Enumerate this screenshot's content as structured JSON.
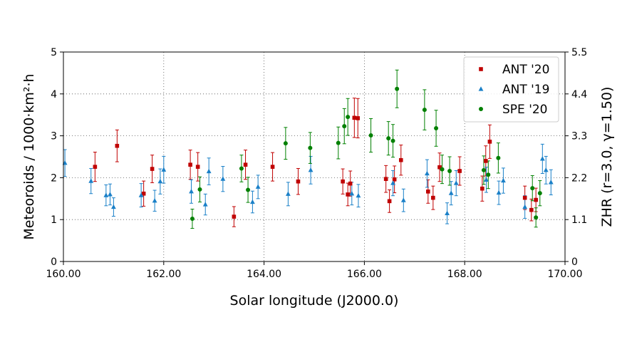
{
  "chart_data": {
    "type": "scatter",
    "xlabel": "Solar longitude (J2000.0)",
    "ylabel_left": "Meteoroids / 1000·km²·h",
    "ylabel_right": "ZHR (r=3.0, γ=1.50)",
    "xlim": [
      160,
      170
    ],
    "ylim_left": [
      0,
      5
    ],
    "ylim_right": [
      0,
      5.5
    ],
    "x_ticks": [
      "160.00",
      "162.00",
      "164.00",
      "166.00",
      "168.00",
      "170.00"
    ],
    "y_ticks_left": [
      "0",
      "1",
      "2",
      "3",
      "4",
      "5"
    ],
    "y_ticks_right": [
      "0",
      "1.1",
      "2.2",
      "3.3",
      "4.4",
      "5.5"
    ],
    "grid": true,
    "legend_position": "top-right",
    "series": [
      {
        "name": "ANT '20",
        "marker": "square",
        "color": "#c00000",
        "points": [
          [
            160.63,
            2.26,
            0.35
          ],
          [
            161.07,
            2.76,
            0.38
          ],
          [
            161.6,
            1.62,
            0.3
          ],
          [
            161.77,
            2.21,
            0.33
          ],
          [
            162.53,
            2.31,
            0.35
          ],
          [
            162.68,
            2.26,
            0.34
          ],
          [
            163.4,
            1.07,
            0.24
          ],
          [
            163.63,
            2.31,
            0.35
          ],
          [
            164.17,
            2.26,
            0.34
          ],
          [
            164.68,
            1.91,
            0.31
          ],
          [
            165.57,
            1.91,
            0.3
          ],
          [
            165.67,
            1.6,
            0.27
          ],
          [
            165.72,
            1.86,
            0.3
          ],
          [
            165.8,
            3.43,
            0.47
          ],
          [
            165.87,
            3.42,
            0.47
          ],
          [
            166.43,
            1.97,
            0.32
          ],
          [
            166.5,
            1.44,
            0.27
          ],
          [
            166.6,
            1.96,
            0.32
          ],
          [
            166.73,
            2.42,
            0.36
          ],
          [
            167.27,
            1.67,
            0.28
          ],
          [
            167.37,
            1.52,
            0.28
          ],
          [
            167.5,
            2.25,
            0.34
          ],
          [
            167.9,
            2.16,
            0.34
          ],
          [
            168.35,
            1.74,
            0.3
          ],
          [
            168.42,
            2.4,
            0.36
          ],
          [
            168.5,
            2.86,
            0.4
          ],
          [
            169.2,
            1.52,
            0.28
          ],
          [
            169.33,
            1.23,
            0.26
          ],
          [
            169.42,
            1.47,
            0.28
          ]
        ]
      },
      {
        "name": "ANT '19",
        "marker": "triangle",
        "color": "#1a80c8",
        "points": [
          [
            160.03,
            2.35,
            0.32
          ],
          [
            160.55,
            1.92,
            0.3
          ],
          [
            160.85,
            1.58,
            0.25
          ],
          [
            160.93,
            1.6,
            0.25
          ],
          [
            161.0,
            1.3,
            0.22
          ],
          [
            161.55,
            1.58,
            0.28
          ],
          [
            161.82,
            1.45,
            0.25
          ],
          [
            161.93,
            1.91,
            0.3
          ],
          [
            162.0,
            2.19,
            0.32
          ],
          [
            162.55,
            1.67,
            0.28
          ],
          [
            162.83,
            1.36,
            0.25
          ],
          [
            162.9,
            2.15,
            0.32
          ],
          [
            163.18,
            1.97,
            0.3
          ],
          [
            163.77,
            1.42,
            0.26
          ],
          [
            163.88,
            1.78,
            0.28
          ],
          [
            164.48,
            1.61,
            0.28
          ],
          [
            164.93,
            2.18,
            0.33
          ],
          [
            165.75,
            1.62,
            0.27
          ],
          [
            165.88,
            1.57,
            0.27
          ],
          [
            166.57,
            1.87,
            0.3
          ],
          [
            166.78,
            1.46,
            0.27
          ],
          [
            167.25,
            2.1,
            0.33
          ],
          [
            167.65,
            1.15,
            0.25
          ],
          [
            167.73,
            1.63,
            0.28
          ],
          [
            167.83,
            1.87,
            0.3
          ],
          [
            168.43,
            1.95,
            0.3
          ],
          [
            168.68,
            1.64,
            0.28
          ],
          [
            168.77,
            1.93,
            0.3
          ],
          [
            169.2,
            1.3,
            0.27
          ],
          [
            169.55,
            2.45,
            0.35
          ],
          [
            169.62,
            2.18,
            0.33
          ],
          [
            169.72,
            1.89,
            0.3
          ]
        ]
      },
      {
        "name": "SPE '20",
        "marker": "circle",
        "color": "#008000",
        "points": [
          [
            162.57,
            1.02,
            0.23
          ],
          [
            162.72,
            1.72,
            0.3
          ],
          [
            163.55,
            2.22,
            0.32
          ],
          [
            163.68,
            1.71,
            0.3
          ],
          [
            164.43,
            2.82,
            0.38
          ],
          [
            164.92,
            2.71,
            0.37
          ],
          [
            165.48,
            2.83,
            0.38
          ],
          [
            165.6,
            3.23,
            0.42
          ],
          [
            165.67,
            3.45,
            0.44
          ],
          [
            166.13,
            3.01,
            0.4
          ],
          [
            166.48,
            2.94,
            0.4
          ],
          [
            166.57,
            2.88,
            0.39
          ],
          [
            166.65,
            4.12,
            0.45
          ],
          [
            167.2,
            3.62,
            0.48
          ],
          [
            167.43,
            3.18,
            0.43
          ],
          [
            167.55,
            2.2,
            0.34
          ],
          [
            167.7,
            2.16,
            0.34
          ],
          [
            168.38,
            2.18,
            0.34
          ],
          [
            168.47,
            2.07,
            0.33
          ],
          [
            168.67,
            2.47,
            0.36
          ],
          [
            169.35,
            1.75,
            0.3
          ],
          [
            169.42,
            1.05,
            0.23
          ],
          [
            169.5,
            1.63,
            0.3
          ]
        ]
      }
    ]
  }
}
